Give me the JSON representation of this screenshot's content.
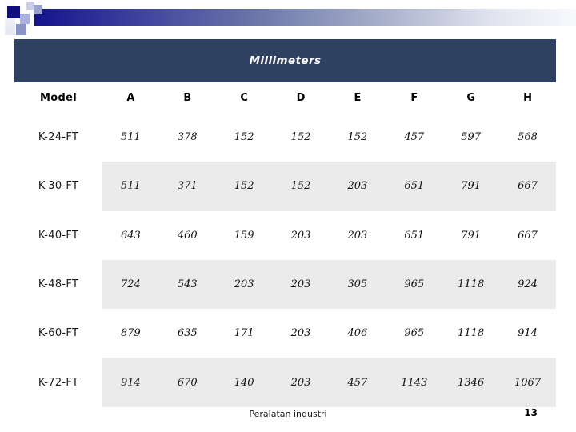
{
  "header": {
    "title": "Millimeters"
  },
  "table": {
    "columns": [
      "Model",
      "A",
      "B",
      "C",
      "D",
      "E",
      "F",
      "G",
      "H"
    ],
    "rows": [
      {
        "model": "K-24-FT",
        "values": [
          "511",
          "378",
          "152",
          "152",
          "152",
          "457",
          "597",
          "568"
        ]
      },
      {
        "model": "K-30-FT",
        "values": [
          "511",
          "371",
          "152",
          "152",
          "203",
          "651",
          "791",
          "667"
        ]
      },
      {
        "model": "K-40-FT",
        "values": [
          "643",
          "460",
          "159",
          "203",
          "203",
          "651",
          "791",
          "667"
        ]
      },
      {
        "model": "K-48-FT",
        "values": [
          "724",
          "543",
          "203",
          "203",
          "305",
          "965",
          "1118",
          "924"
        ]
      },
      {
        "model": "K-60-FT",
        "values": [
          "879",
          "635",
          "171",
          "203",
          "406",
          "965",
          "1118",
          "914"
        ]
      },
      {
        "model": "K-72-FT",
        "values": [
          "914",
          "670",
          "140",
          "203",
          "457",
          "1143",
          "1346",
          "1067"
        ]
      }
    ]
  },
  "footer": {
    "text": "Peralatan industri",
    "page_number": "13"
  },
  "colors": {
    "title_band": "#2f4160",
    "row_stripe": "#ebebeb",
    "accent_navy": "#0f0f7d",
    "accent_lavender": "#9aa2ce"
  }
}
